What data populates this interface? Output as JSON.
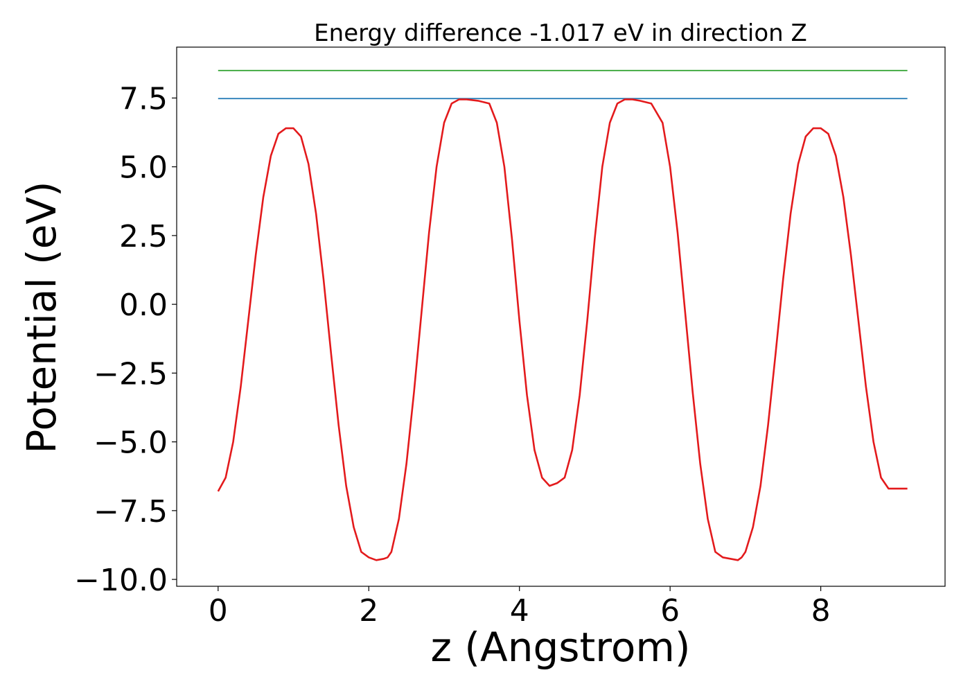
{
  "chart_data": {
    "type": "line",
    "title": "Energy difference -1.017 eV in direction Z",
    "xlabel": "z (Angstrom)",
    "ylabel": "Potential (eV)",
    "xlim": [
      -0.55,
      9.65
    ],
    "ylim": [
      -10.25,
      9.35
    ],
    "xticks": [
      {
        "value": 0,
        "label": "0"
      },
      {
        "value": 2,
        "label": "2"
      },
      {
        "value": 4,
        "label": "4"
      },
      {
        "value": 6,
        "label": "6"
      },
      {
        "value": 8,
        "label": "8"
      }
    ],
    "yticks": [
      {
        "value": 7.5,
        "label": "7.5"
      },
      {
        "value": 5.0,
        "label": "5.0"
      },
      {
        "value": 2.5,
        "label": "2.5"
      },
      {
        "value": 0.0,
        "label": "0.0"
      },
      {
        "value": -2.5,
        "label": "−2.5"
      },
      {
        "value": -5.0,
        "label": "−5.0"
      },
      {
        "value": -7.5,
        "label": "−7.5"
      },
      {
        "value": -10.0,
        "label": "−10.0"
      }
    ],
    "grid": false,
    "legend": "none",
    "series": [
      {
        "color": "#2ca02c",
        "x": [
          0.0,
          9.15
        ],
        "y": [
          8.5,
          8.5
        ]
      },
      {
        "color": "#1f77b4",
        "x": [
          0.0,
          9.15
        ],
        "y": [
          7.48,
          7.48
        ]
      },
      {
        "color": "#e31a1c",
        "x": [
          0.0,
          0.1,
          0.2,
          0.3,
          0.4,
          0.5,
          0.6,
          0.7,
          0.8,
          0.9,
          1.0,
          1.1,
          1.2,
          1.3,
          1.4,
          1.5,
          1.6,
          1.7,
          1.8,
          1.9,
          2.0,
          2.1,
          2.2,
          2.25,
          2.3,
          2.4,
          2.5,
          2.6,
          2.7,
          2.8,
          2.9,
          3.0,
          3.1,
          3.2,
          3.3,
          3.45,
          3.6,
          3.7,
          3.8,
          3.9,
          4.0,
          4.1,
          4.2,
          4.3,
          4.4,
          4.5,
          4.6,
          4.7,
          4.8,
          4.9,
          5.0,
          5.1,
          5.2,
          5.3,
          5.4,
          5.5,
          5.6,
          5.75,
          5.9,
          6.0,
          6.1,
          6.2,
          6.3,
          6.4,
          6.5,
          6.6,
          6.7,
          6.8,
          6.9,
          6.95,
          7.0,
          7.1,
          7.2,
          7.3,
          7.4,
          7.5,
          7.6,
          7.7,
          7.8,
          7.9,
          8.0,
          8.1,
          8.2,
          8.3,
          8.4,
          8.5,
          8.6,
          8.7,
          8.8,
          8.9,
          9.0,
          9.1,
          9.15
        ],
        "y": [
          -6.8,
          -6.3,
          -5.0,
          -3.0,
          -0.6,
          1.8,
          3.9,
          5.4,
          6.2,
          6.4,
          6.4,
          6.1,
          5.1,
          3.3,
          0.9,
          -1.8,
          -4.4,
          -6.6,
          -8.1,
          -9.0,
          -9.2,
          -9.3,
          -9.25,
          -9.2,
          -9.0,
          -7.8,
          -5.8,
          -3.2,
          -0.3,
          2.6,
          5.0,
          6.6,
          7.3,
          7.45,
          7.45,
          7.4,
          7.3,
          6.6,
          5.0,
          2.4,
          -0.6,
          -3.3,
          -5.3,
          -6.3,
          -6.6,
          -6.5,
          -6.3,
          -5.3,
          -3.3,
          -0.6,
          2.4,
          5.0,
          6.6,
          7.3,
          7.45,
          7.45,
          7.4,
          7.3,
          6.6,
          5.0,
          2.6,
          -0.3,
          -3.2,
          -5.8,
          -7.8,
          -9.0,
          -9.2,
          -9.25,
          -9.3,
          -9.2,
          -9.0,
          -8.1,
          -6.6,
          -4.4,
          -1.8,
          0.9,
          3.3,
          5.1,
          6.1,
          6.4,
          6.4,
          6.2,
          5.4,
          3.9,
          1.8,
          -0.6,
          -3.0,
          -5.0,
          -6.3,
          -6.7,
          -6.7,
          -6.7,
          -6.7
        ]
      }
    ]
  }
}
